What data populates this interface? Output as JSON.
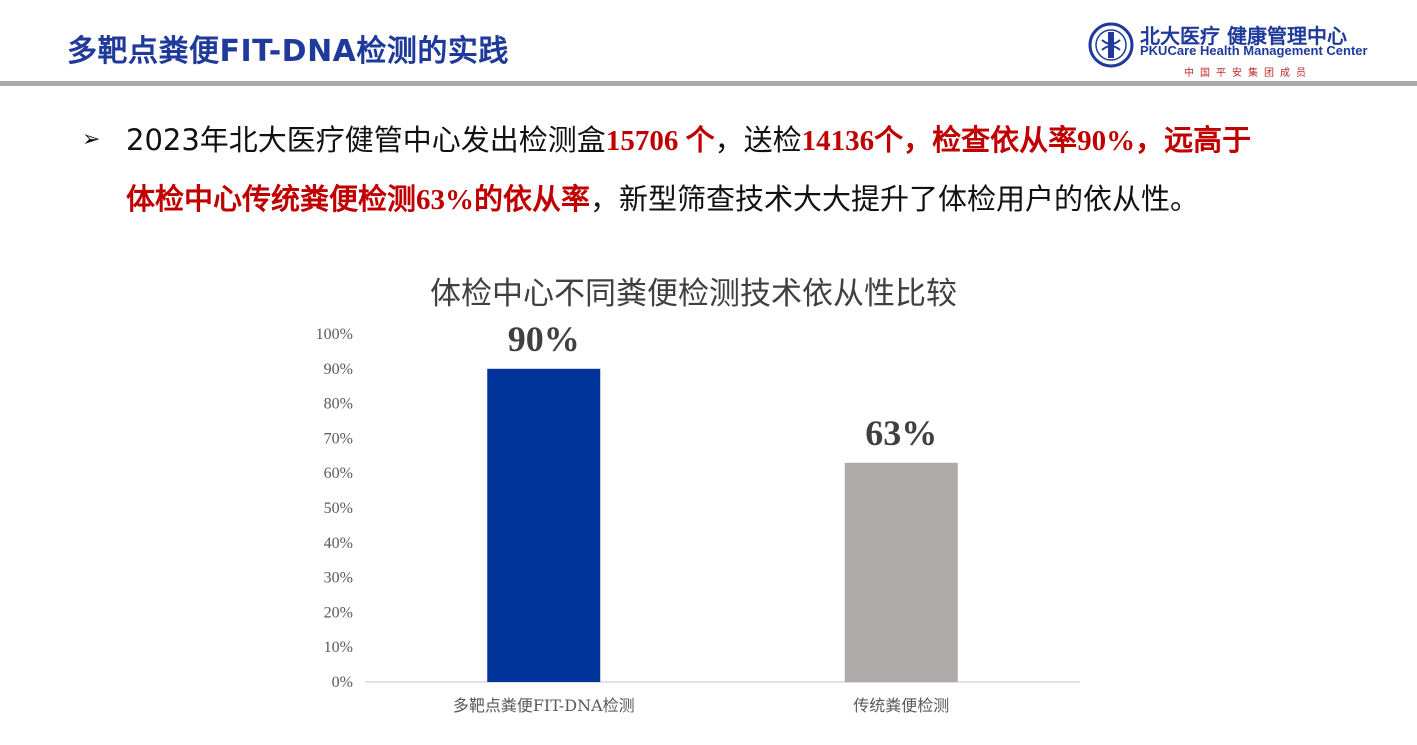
{
  "header": {
    "title": "多靶点粪便FIT-DNA检测的实践",
    "logo_cn": "北大医疗 健康管理中心",
    "logo_en": "PKUCare Health Management Center",
    "logo_sub": "中国平安集团成员"
  },
  "bullet": {
    "arrow": "➢",
    "part1": "2023年北大医疗健管中心发出检测盒",
    "red1": "15706 个",
    "part2": "，送检",
    "red2": "14136个，检查依从率90%，远高于",
    "red3": "体检中心传统粪便检测63%的依从率",
    "part3": "，新型筛查技术大大提升了体检用户的依从性。"
  },
  "colors": {
    "title_blue": "#1f3a9a",
    "accent_red": "#c00000",
    "bar1": "#003399",
    "bar2": "#aeaaaa"
  },
  "chart_data": {
    "type": "bar",
    "title": "体检中心不同粪便检测技术依从性比较",
    "categories": [
      "多靶点粪便FIT-DNA检测",
      "传统粪便检测"
    ],
    "values": [
      90,
      63
    ],
    "data_labels": [
      "90%",
      "63%"
    ],
    "bar_colors": [
      "#003399",
      "#aeaaaa"
    ],
    "ylim": [
      0,
      100
    ],
    "yticks": [
      0,
      10,
      20,
      30,
      40,
      50,
      60,
      70,
      80,
      90,
      100
    ],
    "ytick_labels": [
      "0%",
      "10%",
      "20%",
      "30%",
      "40%",
      "50%",
      "60%",
      "70%",
      "80%",
      "90%",
      "100%"
    ],
    "grid": false,
    "legend": "none"
  }
}
